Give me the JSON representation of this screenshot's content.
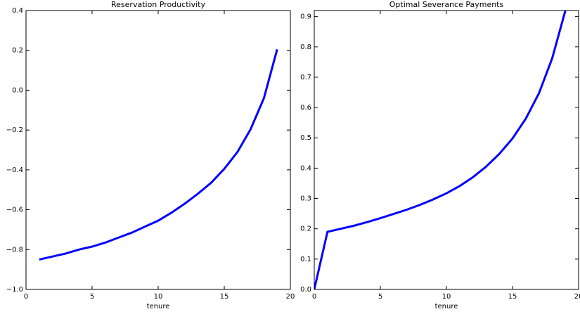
{
  "chart_data": [
    {
      "type": "line",
      "title": "Reservation Productivity",
      "xlabel": "tenure",
      "x": [
        1,
        2,
        3,
        4,
        5,
        6,
        7,
        8,
        9,
        10,
        11,
        12,
        13,
        14,
        15,
        16,
        17,
        18,
        19
      ],
      "series": [
        {
          "color": "#0000ff",
          "values": [
            -0.85,
            -0.835,
            -0.82,
            -0.8,
            -0.785,
            -0.765,
            -0.74,
            -0.715,
            -0.685,
            -0.655,
            -0.615,
            -0.57,
            -0.52,
            -0.465,
            -0.395,
            -0.31,
            -0.195,
            -0.04,
            0.205
          ]
        }
      ],
      "xlim": [
        0,
        20
      ],
      "xticks": [
        0,
        5,
        10,
        15,
        20
      ],
      "ylim": [
        -1.0,
        0.4
      ],
      "yticks": [
        {
          "value": -1.0,
          "label": "−1.0"
        },
        {
          "value": -0.8,
          "label": "−0.8"
        },
        {
          "value": -0.6,
          "label": "−0.6"
        },
        {
          "value": -0.4,
          "label": "−0.4"
        },
        {
          "value": -0.2,
          "label": "−0.2"
        },
        {
          "value": 0.0,
          "label": "0.0"
        },
        0.2,
        0.4
      ]
    },
    {
      "type": "line",
      "title": "Optimal Severance Payments",
      "xlabel": "tenure",
      "x": [
        0,
        1,
        2,
        3,
        4,
        5,
        6,
        7,
        8,
        9,
        10,
        11,
        12,
        13,
        14,
        15,
        16,
        17,
        18,
        19
      ],
      "series": [
        {
          "color": "#0000ff",
          "values": [
            0,
            0.19,
            0.2,
            0.21,
            0.222,
            0.235,
            0.249,
            0.263,
            0.279,
            0.297,
            0.317,
            0.341,
            0.37,
            0.405,
            0.447,
            0.498,
            0.563,
            0.647,
            0.762,
            0.92
          ]
        }
      ],
      "xlim": [
        0,
        20
      ],
      "xticks": [
        0,
        5,
        10,
        15,
        20
      ],
      "ylim": [
        0,
        0.92
      ],
      "yticks": [
        {
          "value": 0.0,
          "label": "0.0"
        },
        0.1,
        0.2,
        0.3,
        0.4,
        0.5,
        0.6,
        0.7,
        0.8,
        0.9
      ]
    }
  ]
}
